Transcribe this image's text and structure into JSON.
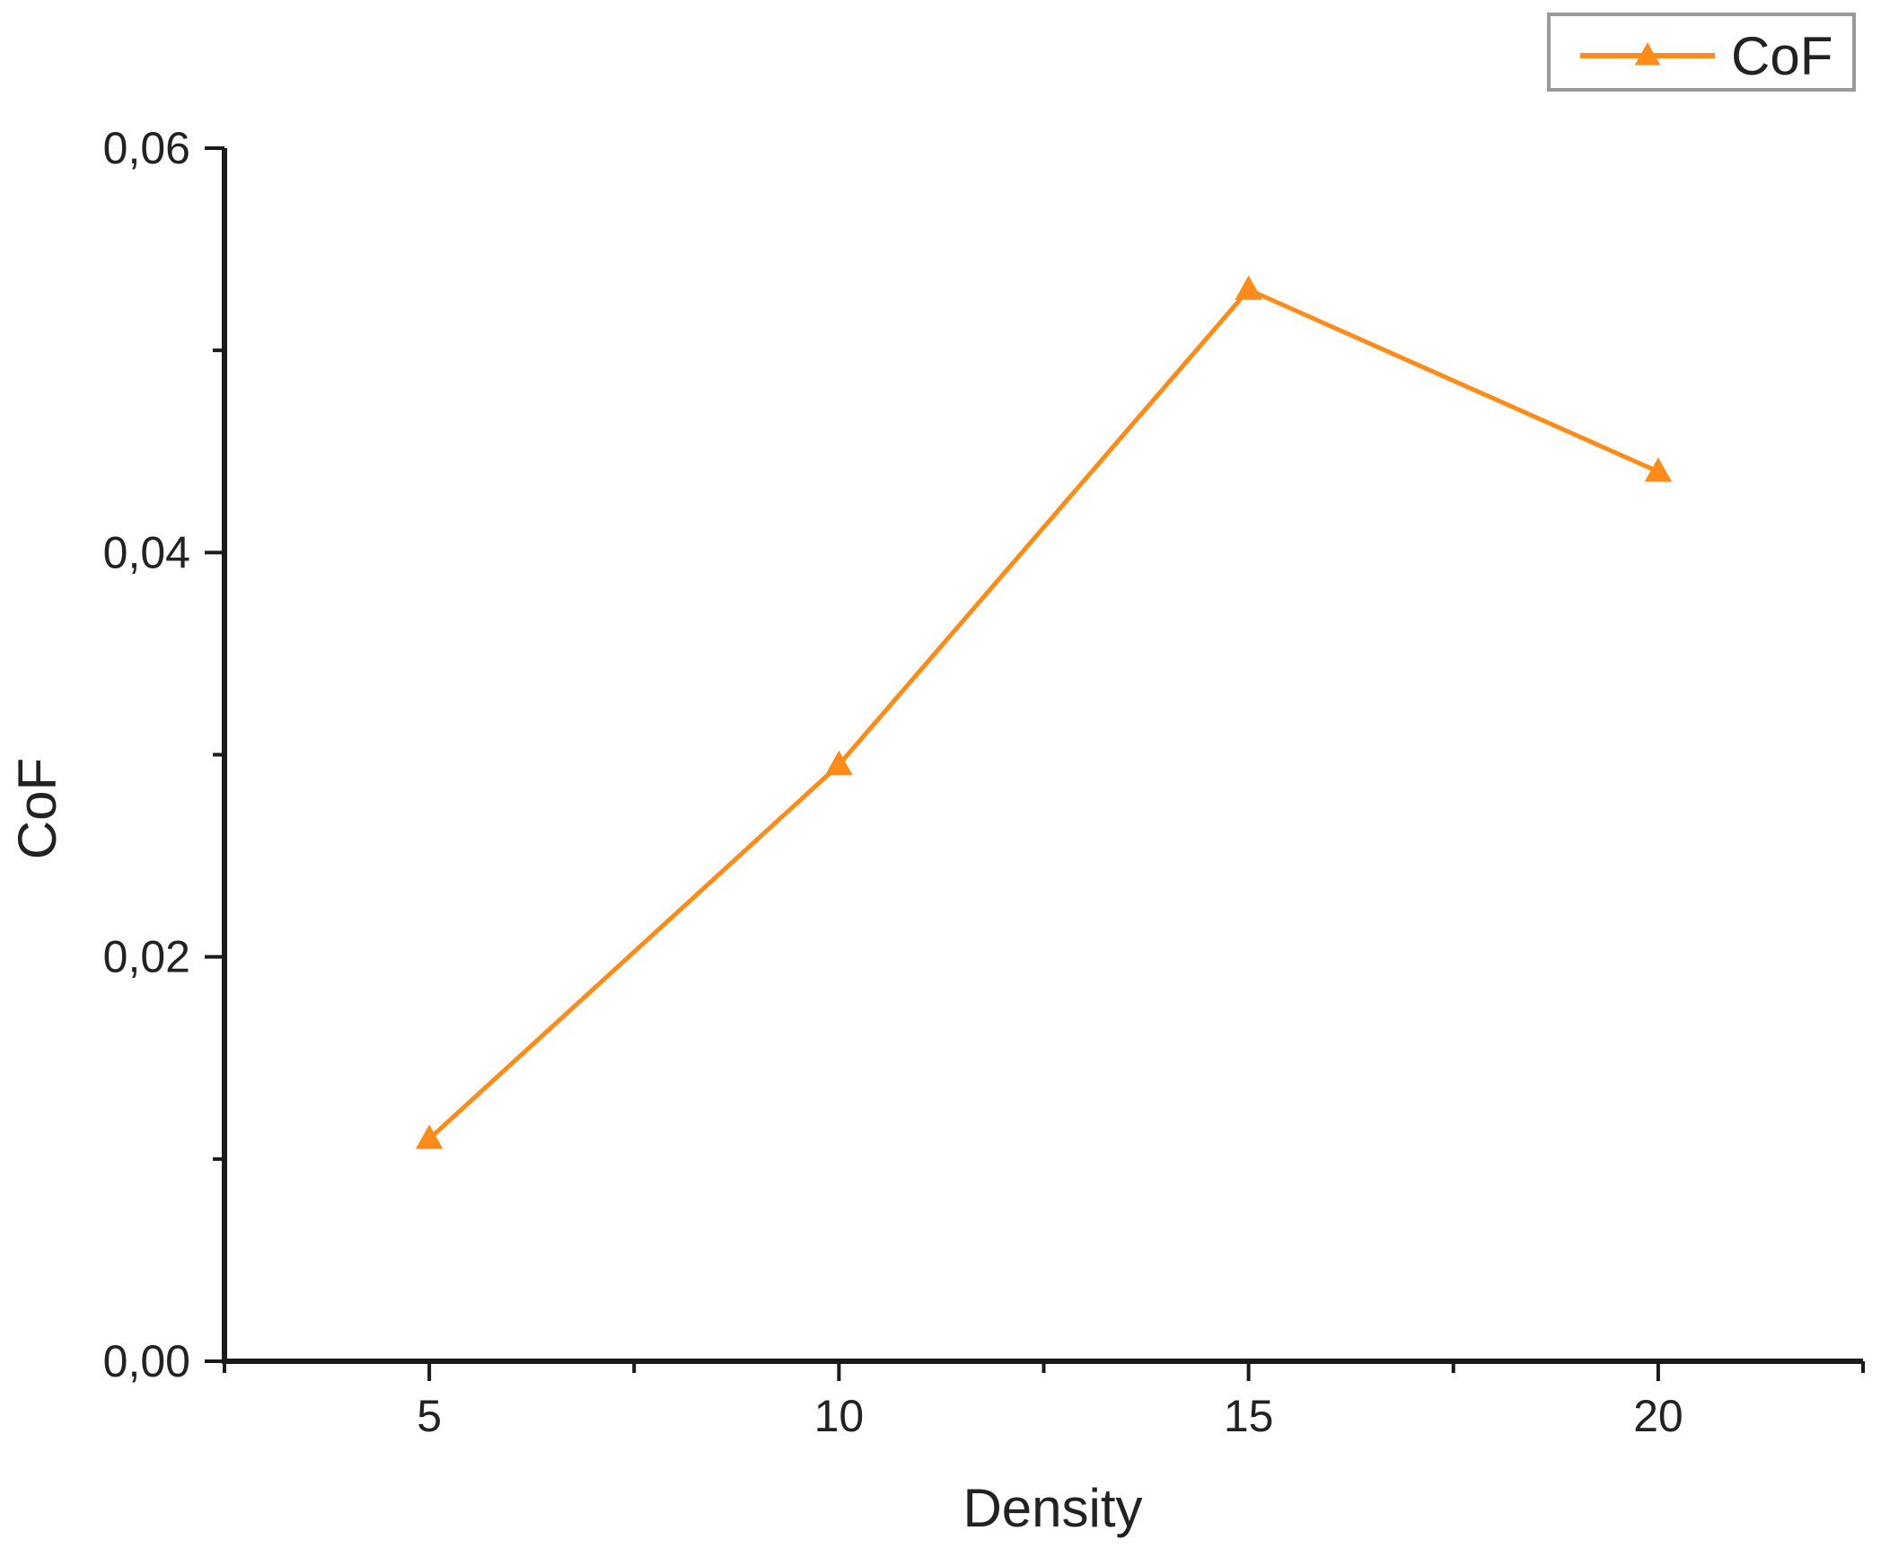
{
  "chart_data": {
    "type": "line",
    "title": "",
    "xlabel": "Density",
    "ylabel": "CoF",
    "x": [
      5,
      10,
      15,
      20
    ],
    "x_ticks": [
      5,
      10,
      15,
      20
    ],
    "x_tick_labels": [
      "5",
      "10",
      "15",
      "20"
    ],
    "y_ticks": [
      0,
      0.02,
      0.04,
      0.06
    ],
    "y_tick_labels": [
      "0,00",
      "0,02",
      "0,04",
      "0,06"
    ],
    "xlim": [
      2.5,
      22.5
    ],
    "ylim": [
      0,
      0.06
    ],
    "grid": false,
    "legend_position": "top-right",
    "series": [
      {
        "name": "CoF",
        "marker": "triangle",
        "color": "#FF8C1A",
        "values": [
          0.011,
          0.0295,
          0.053,
          0.044
        ]
      }
    ]
  }
}
